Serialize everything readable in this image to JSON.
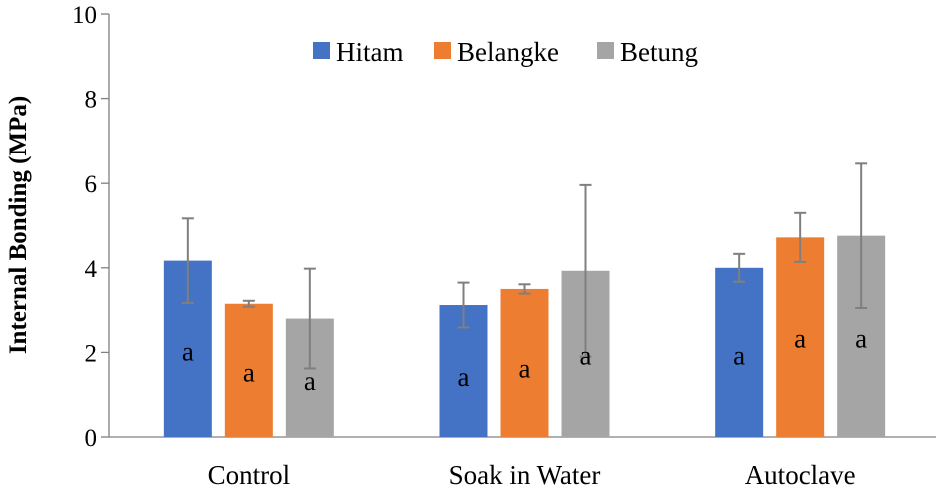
{
  "chart_data": {
    "type": "bar",
    "title": "",
    "xlabel": "",
    "ylabel": "Internal Bonding (MPa)",
    "ylim": [
      0,
      10
    ],
    "yticks": [
      "0",
      "2",
      "4",
      "6",
      "8",
      "10"
    ],
    "grid": false,
    "legend_position": "top-center",
    "categories": [
      "Control",
      "Soak in Water",
      "Autoclave"
    ],
    "series": [
      {
        "name": "Hitam",
        "color": "#4472C4",
        "values": [
          4.17,
          3.12,
          4.0
        ],
        "errors": [
          1.0,
          0.53,
          0.33
        ],
        "labels": [
          "a",
          "a",
          "a"
        ],
        "label_values": [
          2.0,
          1.4,
          1.9
        ]
      },
      {
        "name": "Belangke",
        "color": "#ED7D31",
        "values": [
          3.15,
          3.5,
          4.72
        ],
        "errors": [
          0.07,
          0.11,
          0.58
        ],
        "labels": [
          "a",
          "a",
          "a"
        ],
        "label_values": [
          1.5,
          1.6,
          2.3
        ]
      },
      {
        "name": "Betung",
        "color": "#A5A5A5",
        "values": [
          2.8,
          3.93,
          4.76
        ],
        "errors": [
          1.18,
          2.03,
          1.71
        ],
        "labels": [
          "a",
          "a",
          "a"
        ],
        "label_values": [
          1.3,
          1.9,
          2.3
        ]
      }
    ]
  }
}
